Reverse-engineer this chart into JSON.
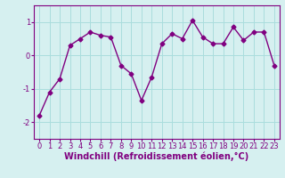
{
  "x": [
    0,
    1,
    2,
    3,
    4,
    5,
    6,
    7,
    8,
    9,
    10,
    11,
    12,
    13,
    14,
    15,
    16,
    17,
    18,
    19,
    20,
    21,
    22,
    23
  ],
  "y": [
    -1.8,
    -1.1,
    -0.7,
    0.3,
    0.5,
    0.7,
    0.6,
    0.55,
    -0.3,
    -0.55,
    -1.35,
    -0.65,
    0.35,
    0.65,
    0.5,
    1.05,
    0.55,
    0.35,
    0.35,
    0.85,
    0.45,
    0.7,
    0.7,
    -0.3
  ],
  "line_color": "#800080",
  "marker": "D",
  "marker_size": 2.5,
  "bg_color": "#d6f0f0",
  "grid_color": "#aadddd",
  "xlabel": "Windchill (Refroidissement éolien,°C)",
  "xlim": [
    -0.5,
    23.5
  ],
  "ylim": [
    -2.5,
    1.5
  ],
  "xticks": [
    0,
    1,
    2,
    3,
    4,
    5,
    6,
    7,
    8,
    9,
    10,
    11,
    12,
    13,
    14,
    15,
    16,
    17,
    18,
    19,
    20,
    21,
    22,
    23
  ],
  "yticks": [
    -2,
    -1,
    0,
    1
  ],
  "tick_fontsize": 6,
  "xlabel_fontsize": 7,
  "line_width": 1.0
}
